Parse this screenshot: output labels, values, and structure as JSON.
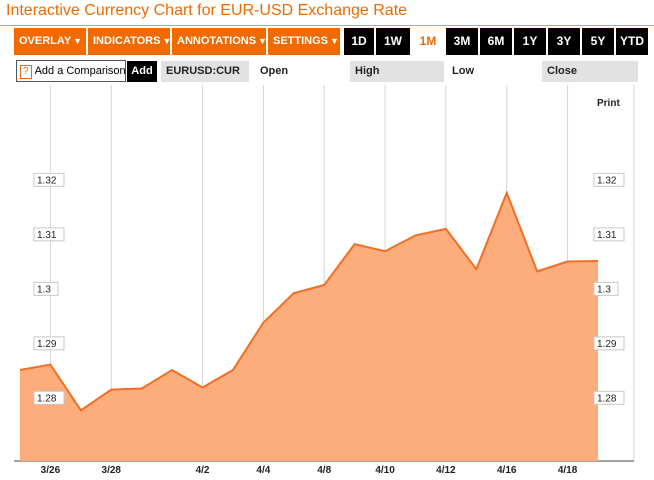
{
  "title": "Interactive Currency Chart for EUR-USD Exchange Rate",
  "toolbar": {
    "menus": [
      {
        "label": "OVERLAY",
        "arrow": "▼"
      },
      {
        "label": "INDICATORS",
        "arrow": "▼"
      },
      {
        "label": "ANNOTATIONS",
        "arrow": "▼"
      },
      {
        "label": "SETTINGS",
        "arrow": "▼"
      }
    ],
    "ranges": [
      "1D",
      "1W",
      "1M",
      "3M",
      "6M",
      "1Y",
      "3Y",
      "5Y",
      "YTD"
    ],
    "active_range": "1M"
  },
  "comparison": {
    "help": "?",
    "label": "Add a Comparison",
    "add_label": "Add"
  },
  "quote": {
    "symbol": "EURUSD:CUR",
    "open_label": "Open",
    "high_label": "High",
    "low_label": "Low",
    "close_label": "Close"
  },
  "print_label": "Print",
  "colors": {
    "accent": "#f06a00",
    "fill": "#fdad7b",
    "line": "#f26e22",
    "grid": "#d4d4d4"
  },
  "chart_data": {
    "type": "area",
    "x": [
      "3/25",
      "3/26",
      "3/27",
      "3/28",
      "3/29",
      "4/1",
      "4/2",
      "4/3",
      "4/4",
      "4/5",
      "4/8",
      "4/9",
      "4/10",
      "4/11",
      "4/12",
      "4/15",
      "4/16",
      "4/17",
      "4/18",
      "4/19"
    ],
    "values": [
      1.2852,
      1.2862,
      1.2778,
      1.2816,
      1.2818,
      1.2852,
      1.282,
      1.2852,
      1.2939,
      1.2993,
      1.3008,
      1.3083,
      1.307,
      1.3099,
      1.3111,
      1.3037,
      1.3177,
      1.3033,
      1.3051,
      1.3052
    ],
    "x_ticks": [
      "3/26",
      "3/28",
      "4/2",
      "4/4",
      "4/8",
      "4/10",
      "4/12",
      "4/16",
      "4/18"
    ],
    "y_ticks": [
      "1.28",
      "1.29",
      "1.3",
      "1.31",
      "1.32"
    ],
    "y_tick_values": [
      1.28,
      1.29,
      1.3,
      1.31,
      1.32
    ],
    "ylim": [
      1.2685,
      1.3375
    ],
    "grid": true
  }
}
